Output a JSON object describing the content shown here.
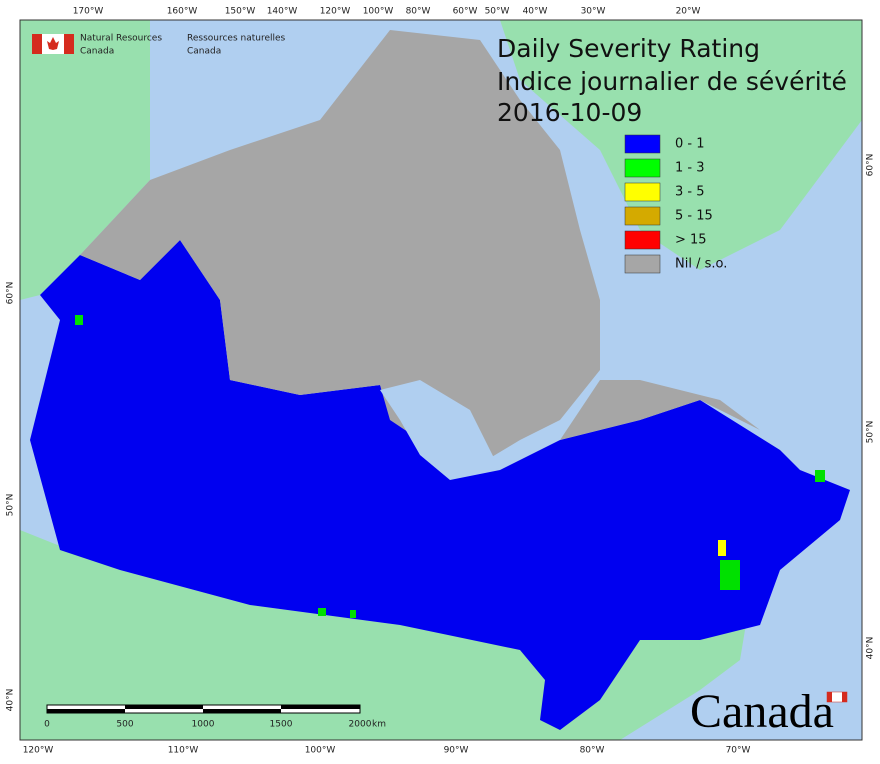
{
  "agency": {
    "en_line1": "Natural Resources",
    "en_line2": "Canada",
    "fr_line1": "Ressources naturelles",
    "fr_line2": "Canada"
  },
  "title": {
    "en": "Daily Severity Rating",
    "fr": "Indice journalier de sévérité",
    "date": "2016-10-09"
  },
  "legend": [
    {
      "label": "0 - 1",
      "color": "#0000ff"
    },
    {
      "label": "1 - 3",
      "color": "#00ff00"
    },
    {
      "label": "3 - 5",
      "color": "#ffff00"
    },
    {
      "label": "5 - 15",
      "color": "#d4aa00"
    },
    {
      "label": "> 15",
      "color": "#ff0000"
    },
    {
      "label": "Nil / s.o.",
      "color": "#a6a6a6"
    }
  ],
  "top_labels": [
    "170°W",
    "160°W",
    "150°W",
    "140°W",
    "120°W",
    "100°W",
    "80°W",
    "60°W",
    "50°W",
    "40°W",
    "30°W",
    "20°W"
  ],
  "bottom_labels": [
    "120°W",
    "110°W",
    "100°W",
    "90°W",
    "80°W",
    "70°W"
  ],
  "left_labels": [
    "60°N",
    "50°N",
    "40°N"
  ],
  "right_labels": [
    "60°N",
    "50°N",
    "40°N"
  ],
  "scale": {
    "ticks": [
      "0",
      "500",
      "1000",
      "1500",
      "2000"
    ],
    "unit": "km"
  },
  "wordmark": "Canada"
}
